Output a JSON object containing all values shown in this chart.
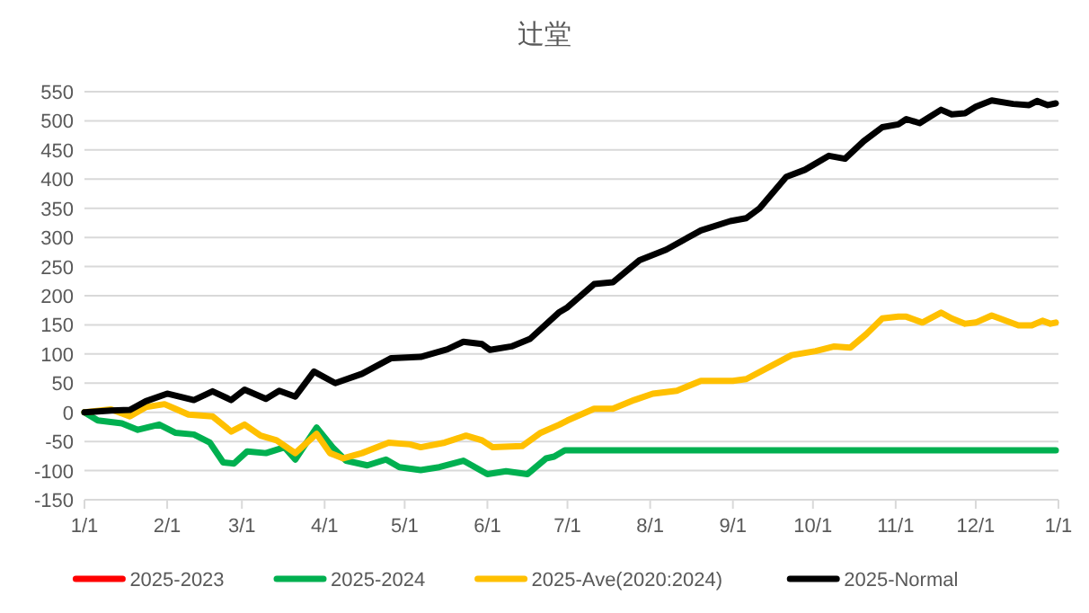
{
  "chart_data": {
    "type": "line",
    "title": "辻堂",
    "legend": "bottom",
    "grid": "y",
    "xlim": [
      "2025-01-01",
      "2026-01-01"
    ],
    "xticks": [
      {
        "value": "2025-01-01",
        "label": "1/1"
      },
      {
        "value": "2025-02-01",
        "label": "2/1"
      },
      {
        "value": "2025-03-01",
        "label": "3/1"
      },
      {
        "value": "2025-04-01",
        "label": "4/1"
      },
      {
        "value": "2025-05-01",
        "label": "5/1"
      },
      {
        "value": "2025-06-01",
        "label": "6/1"
      },
      {
        "value": "2025-07-01",
        "label": "7/1"
      },
      {
        "value": "2025-08-01",
        "label": "8/1"
      },
      {
        "value": "2025-09-01",
        "label": "9/1"
      },
      {
        "value": "2025-10-01",
        "label": "10/1"
      },
      {
        "value": "2025-11-01",
        "label": "11/1"
      },
      {
        "value": "2025-12-01",
        "label": "12/1"
      },
      {
        "value": "2026-01-01",
        "label": "1/1"
      }
    ],
    "ylim": [
      -150,
      550
    ],
    "yticks": [
      -150,
      -100,
      -50,
      0,
      50,
      100,
      150,
      200,
      250,
      300,
      350,
      400,
      450,
      500,
      550
    ],
    "series": [
      {
        "name": "2025-2023",
        "color": "#ff0000"
      },
      {
        "name": "2025-2024",
        "color": "#00b050",
        "x": [
          "2025-01-01",
          "2025-01-06",
          "2025-01-15",
          "2025-01-21",
          "2025-01-29",
          "2025-02-04",
          "2025-02-11",
          "2025-02-17",
          "2025-02-22",
          "2025-02-26",
          "2025-03-03",
          "2025-03-10",
          "2025-03-17",
          "2025-03-21",
          "2025-03-29",
          "2025-04-04",
          "2025-04-09",
          "2025-04-17",
          "2025-04-24",
          "2025-04-29",
          "2025-05-07",
          "2025-05-14",
          "2025-05-23",
          "2025-06-01",
          "2025-06-08",
          "2025-06-16",
          "2025-06-23",
          "2025-06-26",
          "2025-06-30",
          "2025-12-31"
        ],
        "values": [
          0,
          -14,
          -19,
          -30,
          -21,
          -35,
          -38,
          -52,
          -86,
          -88,
          -67,
          -70,
          -60,
          -81,
          -26,
          -60,
          -83,
          -91,
          -81,
          -94,
          -99,
          -94,
          -83,
          -106,
          -101,
          -106,
          -79,
          -76,
          -65,
          -65
        ]
      },
      {
        "name": "2025-Ave(2020:2024)",
        "color": "#ffc000",
        "x": [
          "2025-01-01",
          "2025-01-11",
          "2025-01-18",
          "2025-01-24",
          "2025-01-31",
          "2025-02-04",
          "2025-02-09",
          "2025-02-18",
          "2025-02-25",
          "2025-03-02",
          "2025-03-08",
          "2025-03-14",
          "2025-03-21",
          "2025-03-29",
          "2025-04-03",
          "2025-04-08",
          "2025-04-15",
          "2025-04-25",
          "2025-05-03",
          "2025-05-07",
          "2025-05-16",
          "2025-05-24",
          "2025-05-30",
          "2025-06-03",
          "2025-06-14",
          "2025-06-21",
          "2025-06-28",
          "2025-07-01",
          "2025-07-11",
          "2025-07-18",
          "2025-07-26",
          "2025-08-02",
          "2025-08-11",
          "2025-08-20",
          "2025-09-01",
          "2025-09-06",
          "2025-09-16",
          "2025-09-23",
          "2025-10-02",
          "2025-10-09",
          "2025-10-15",
          "2025-10-21",
          "2025-10-27",
          "2025-11-02",
          "2025-11-05",
          "2025-11-11",
          "2025-11-18",
          "2025-11-22",
          "2025-11-27",
          "2025-12-01",
          "2025-12-07",
          "2025-12-17",
          "2025-12-22",
          "2025-12-26",
          "2025-12-29",
          "2025-12-31"
        ],
        "values": [
          0,
          5,
          -7,
          9,
          14,
          6,
          -4,
          -7,
          -33,
          -21,
          -40,
          -48,
          -70,
          -37,
          -70,
          -79,
          -70,
          -52,
          -55,
          -60,
          -52,
          -40,
          -48,
          -60,
          -58,
          -35,
          -21,
          -14,
          6,
          6,
          21,
          32,
          37,
          54,
          54,
          57,
          81,
          98,
          105,
          113,
          111,
          134,
          161,
          164,
          164,
          154,
          171,
          161,
          152,
          154,
          166,
          149,
          149,
          157,
          152,
          154
        ]
      },
      {
        "name": "2025-Normal",
        "color": "#000000",
        "x": [
          "2025-01-01",
          "2025-01-11",
          "2025-01-18",
          "2025-01-24",
          "2025-02-01",
          "2025-02-11",
          "2025-02-18",
          "2025-02-25",
          "2025-03-02",
          "2025-03-10",
          "2025-03-15",
          "2025-03-21",
          "2025-03-28",
          "2025-04-05",
          "2025-04-15",
          "2025-04-26",
          "2025-05-07",
          "2025-05-17",
          "2025-05-23",
          "2025-05-30",
          "2025-06-02",
          "2025-06-10",
          "2025-06-17",
          "2025-06-28",
          "2025-07-01",
          "2025-07-11",
          "2025-07-18",
          "2025-07-28",
          "2025-08-07",
          "2025-08-20",
          "2025-08-31",
          "2025-09-06",
          "2025-09-11",
          "2025-09-21",
          "2025-09-28",
          "2025-10-07",
          "2025-10-13",
          "2025-10-20",
          "2025-10-27",
          "2025-11-02",
          "2025-11-05",
          "2025-11-10",
          "2025-11-18",
          "2025-11-22",
          "2025-11-27",
          "2025-12-01",
          "2025-12-07",
          "2025-12-15",
          "2025-12-21",
          "2025-12-24",
          "2025-12-28",
          "2025-12-31"
        ],
        "values": [
          0,
          3,
          4,
          19,
          32,
          21,
          36,
          21,
          39,
          23,
          37,
          27,
          70,
          50,
          66,
          93,
          95,
          108,
          121,
          117,
          107,
          113,
          126,
          172,
          180,
          220,
          223,
          261,
          279,
          312,
          328,
          333,
          350,
          404,
          416,
          440,
          435,
          465,
          489,
          494,
          503,
          496,
          519,
          511,
          513,
          524,
          535,
          529,
          527,
          534,
          527,
          530
        ]
      }
    ]
  }
}
